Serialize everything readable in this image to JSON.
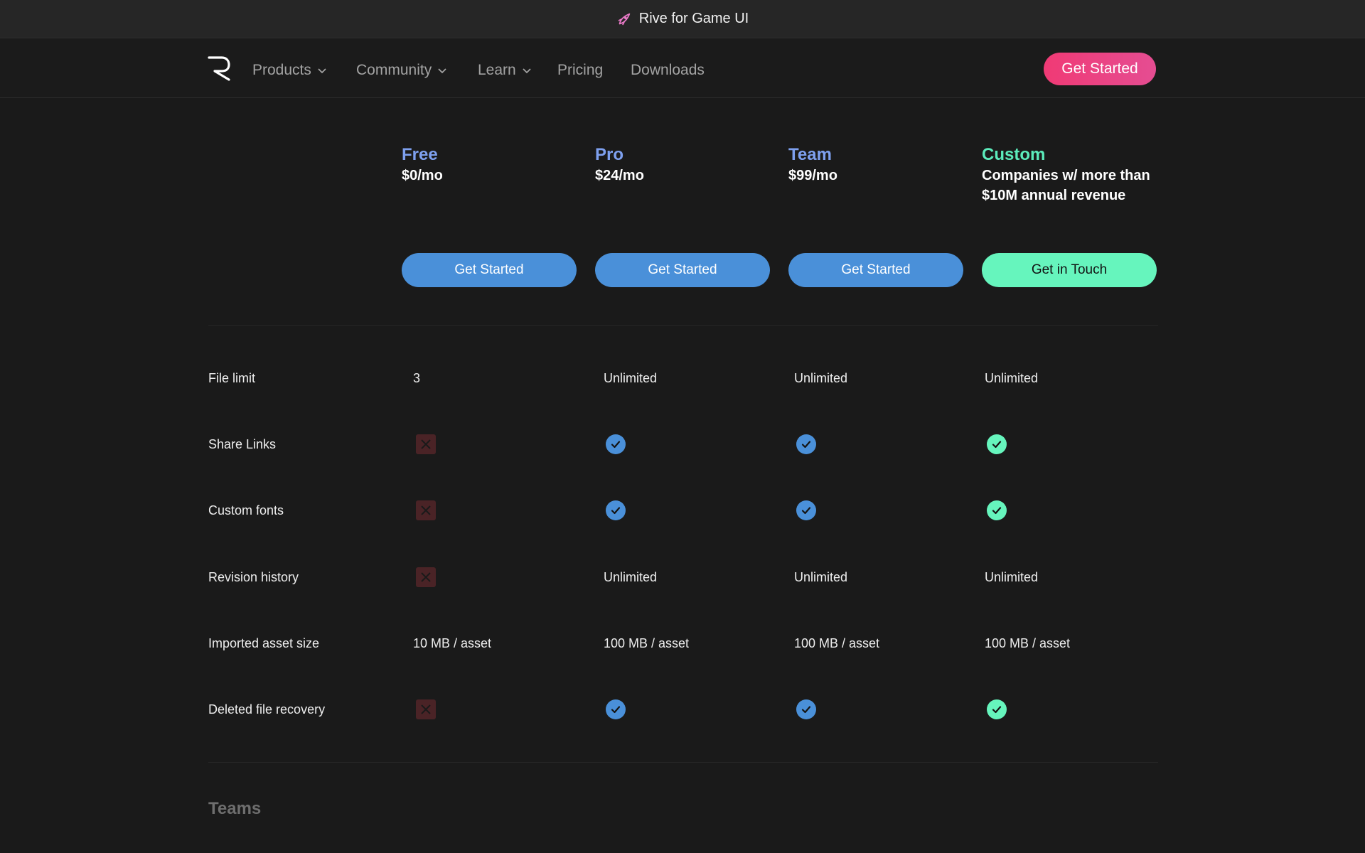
{
  "announcement": {
    "text": "Rive for Game UI",
    "icon": "rocket-icon"
  },
  "nav": {
    "logo": "rive-logo",
    "items": [
      {
        "label": "Products",
        "dropdown": true
      },
      {
        "label": "Community",
        "dropdown": true
      },
      {
        "label": "Learn",
        "dropdown": true
      },
      {
        "label": "Pricing",
        "dropdown": false
      },
      {
        "label": "Downloads",
        "dropdown": false
      }
    ],
    "cta": "Get Started"
  },
  "plans": [
    {
      "name": "Free",
      "price": "$0/mo",
      "button": "Get Started",
      "color": "#7ea0ef"
    },
    {
      "name": "Pro",
      "price": "$24/mo",
      "button": "Get Started",
      "color": "#7ea0ef"
    },
    {
      "name": "Team",
      "price": "$99/mo",
      "button": "Get Started",
      "color": "#7ea0ef"
    },
    {
      "name": "Custom",
      "price": "Companies w/ more than $10M annual revenue",
      "button": "Get in Touch",
      "color": "#5cecbc"
    }
  ],
  "features": [
    {
      "label": "File limit",
      "values": [
        "3",
        "Unlimited",
        "Unlimited",
        "Unlimited"
      ]
    },
    {
      "label": "Share Links",
      "values": [
        "no",
        "yes",
        "yes",
        "yes"
      ]
    },
    {
      "label": "Custom fonts",
      "values": [
        "no",
        "yes",
        "yes",
        "yes"
      ]
    },
    {
      "label": "Revision history",
      "values": [
        "no",
        "Unlimited",
        "Unlimited",
        "Unlimited"
      ]
    },
    {
      "label": "Imported asset size",
      "values": [
        "10 MB / asset",
        "100 MB / asset",
        "100 MB / asset",
        "100 MB / asset"
      ]
    },
    {
      "label": "Deleted file recovery",
      "values": [
        "no",
        "yes",
        "yes",
        "yes"
      ]
    }
  ],
  "section": {
    "title": "Teams"
  },
  "colors": {
    "background": "#1a1a1a",
    "accent_pink": "#f03a75",
    "button_blue": "#4a90d9",
    "accent_green": "#66f5bd",
    "cross_bg": "#4a2326"
  }
}
